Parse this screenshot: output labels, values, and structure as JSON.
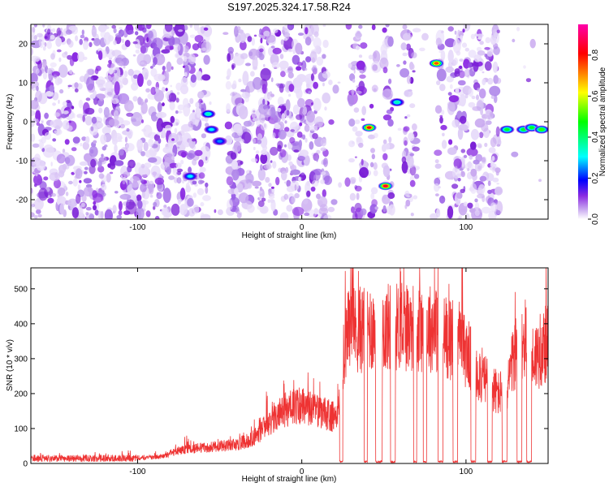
{
  "chart_data": [
    {
      "type": "heatmap",
      "title": "S197.2025.324.17.58.R24",
      "xlabel": "Height of straight line (km)",
      "ylabel": "Frequency (Hz)",
      "xlim": [
        -165,
        150
      ],
      "ylim": [
        -25,
        25
      ],
      "xticks": [
        -100,
        0,
        100
      ],
      "yticks": [
        -20,
        -10,
        0,
        10,
        20
      ],
      "xtick_labels": [
        "-100",
        "0",
        "100"
      ],
      "ytick_labels": [
        "-20",
        "-10",
        "0",
        "10",
        "20"
      ],
      "colorbar": {
        "label": "Normalized spectral amplitude",
        "range": [
          0,
          0.95
        ],
        "ticks": [
          0.0,
          0.2,
          0.4,
          0.6,
          0.8
        ],
        "tick_labels": [
          "0.0",
          "0.2",
          "0.4",
          "0.6",
          "0.8"
        ]
      },
      "colormap": [
        "#ffffff",
        "#c9a9f0",
        "#8b2be2",
        "#0000ff",
        "#00ffff",
        "#00ff00",
        "#ffff00",
        "#ff0000",
        "#ff00aa"
      ],
      "blank_height_ranges": [
        [
          -57,
          -45
        ],
        [
          15,
          30
        ],
        [
          38,
          42
        ],
        [
          45,
          50
        ],
        [
          55,
          62
        ],
        [
          70,
          78
        ],
        [
          78,
          82
        ],
        [
          87,
          90
        ],
        [
          120,
          150
        ]
      ],
      "strong_peaks": [
        {
          "x": -68,
          "y": -14,
          "amplitude": 0.3
        },
        {
          "x": -57,
          "y": 2,
          "amplitude": 0.35
        },
        {
          "x": -55,
          "y": -2,
          "amplitude": 0.3
        },
        {
          "x": -50,
          "y": -5,
          "amplitude": 0.25
        },
        {
          "x": 41,
          "y": -1.5,
          "amplitude": 0.8
        },
        {
          "x": 51,
          "y": -16.5,
          "amplitude": 0.85
        },
        {
          "x": 58,
          "y": 5,
          "amplitude": 0.35
        },
        {
          "x": 82,
          "y": 15,
          "amplitude": 0.75
        },
        {
          "x": 125,
          "y": -2,
          "amplitude": 0.45
        },
        {
          "x": 135,
          "y": -2,
          "amplitude": 0.45
        },
        {
          "x": 140,
          "y": -1.5,
          "amplitude": 0.45
        },
        {
          "x": 146,
          "y": -2,
          "amplitude": 0.5
        }
      ]
    },
    {
      "type": "line",
      "xlabel": "Height of straight line (km)",
      "ylabel": "SNR (10 * v/v)",
      "xlim": [
        -165,
        150
      ],
      "ylim": [
        0,
        560
      ],
      "xticks": [
        -100,
        0,
        100
      ],
      "yticks": [
        0,
        100,
        200,
        300,
        400,
        500
      ],
      "xtick_labels": [
        "-100",
        "0",
        "100"
      ],
      "ytick_labels": [
        "0",
        "100",
        "200",
        "300",
        "400",
        "500"
      ],
      "series": [
        {
          "name": "SNR",
          "color": "#ee3333",
          "envelope_x": [
            -165,
            -120,
            -100,
            -85,
            -75,
            -60,
            -50,
            -40,
            -30,
            -20,
            -10,
            0,
            10,
            20,
            22,
            25,
            28,
            32,
            40,
            60,
            80,
            100,
            110,
            120,
            125,
            130,
            135,
            140,
            145,
            150
          ],
          "envelope_y": [
            12,
            12,
            15,
            25,
            45,
            55,
            60,
            65,
            85,
            140,
            190,
            200,
            180,
            160,
            170,
            350,
            480,
            460,
            470,
            475,
            470,
            390,
            300,
            240,
            270,
            380,
            430,
            360,
            390,
            420
          ],
          "dropouts": [
            [
              23,
              25
            ],
            [
              38,
              40
            ],
            [
              45,
              49
            ],
            [
              54,
              57
            ],
            [
              68,
              70
            ],
            [
              74,
              76
            ],
            [
              83,
              86
            ],
            [
              92,
              95
            ],
            [
              103,
              106
            ],
            [
              113,
              116
            ],
            [
              122,
              125
            ],
            [
              131,
              134
            ],
            [
              137,
              140
            ]
          ]
        }
      ]
    }
  ]
}
